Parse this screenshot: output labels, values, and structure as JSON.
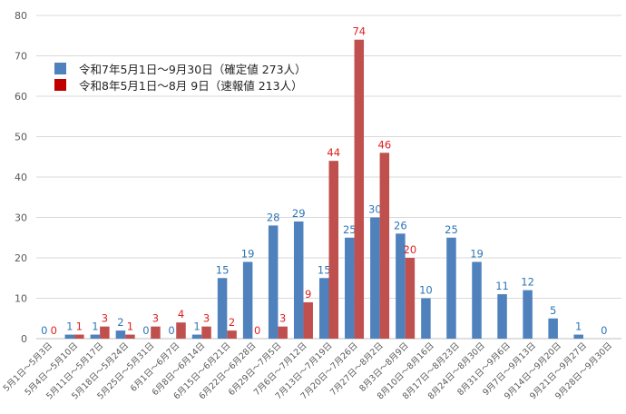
{
  "chart_data": {
    "type": "bar",
    "title": "",
    "xlabel": "",
    "ylabel": "",
    "ylim": [
      0,
      80
    ],
    "yticks": [
      0,
      10,
      20,
      30,
      40,
      50,
      60,
      70,
      80
    ],
    "grid": true,
    "legend_position": "top-left",
    "categories": [
      "5月1日～5月3日",
      "5月4日～5月10日",
      "5月11日～5月17日",
      "5月18日～5月24日",
      "5月25日～5月31日",
      "6月1日～6月7日",
      "6月8日～6月14日",
      "6月15日～6月21日",
      "6月22日～6月28日",
      "6月29日～7月5日",
      "7月6日～7月12日",
      "7月13日～7月19日",
      "7月20日～7月26日",
      "7月27日～8月2日",
      "8月3日～8月9日",
      "8月10日～8月16日",
      "8月17日～8月23日",
      "8月24日～8月30日",
      "8月31日～9月6日",
      "9月7日～9月13日",
      "9月14日～9月20日",
      "9月21日～9月27日",
      "9月28日～9月30日"
    ],
    "series": [
      {
        "name": "令和7年5月1日～9月30日（確定値 273人）",
        "color": "#4f81bd",
        "label_color": "#2e75b6",
        "values": [
          0,
          1,
          1,
          2,
          0,
          0,
          1,
          15,
          19,
          28,
          29,
          15,
          25,
          30,
          26,
          10,
          25,
          19,
          11,
          12,
          5,
          1,
          0
        ]
      },
      {
        "name": "令和8年5月1日～8月 9日（速報値 213人）",
        "color": "#c0504d",
        "label_color": "#e02020",
        "values": [
          0,
          1,
          3,
          1,
          3,
          4,
          3,
          2,
          0,
          3,
          9,
          44,
          74,
          46,
          20,
          null,
          null,
          null,
          null,
          null,
          null,
          null,
          null
        ]
      }
    ]
  },
  "legend": {
    "items": [
      {
        "label": "令和7年5月1日～9月30日（確定値 273人）",
        "color": "#4f81bd"
      },
      {
        "label": "令和8年5月1日～8月 9日（速報値 213人）",
        "color": "#c00000"
      }
    ]
  }
}
